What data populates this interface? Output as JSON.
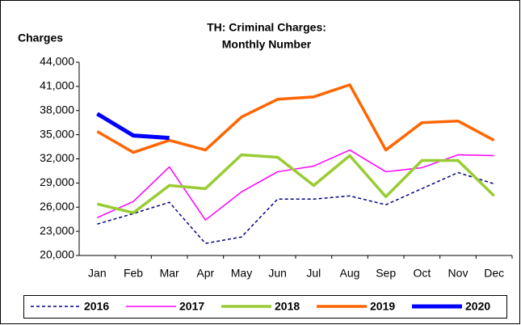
{
  "chart_data": {
    "type": "line",
    "title": [
      "TH: Criminal Charges:",
      "Monthly Number"
    ],
    "y_label": "Charges",
    "categories": [
      "Jan",
      "Feb",
      "Mar",
      "Apr",
      "May",
      "Jun",
      "Jul",
      "Aug",
      "Sep",
      "Oct",
      "Nov",
      "Dec"
    ],
    "series": [
      {
        "name": "2016",
        "color": "#000080",
        "line_style": "dashed",
        "values": [
          23900,
          25200,
          26600,
          21500,
          22300,
          27000,
          27000,
          27400,
          26300,
          28300,
          30300,
          28900
        ]
      },
      {
        "name": "2017",
        "color": "#ff00ff",
        "line_style": "solid",
        "values": [
          24700,
          26700,
          31000,
          24400,
          27900,
          30400,
          31100,
          33100,
          30400,
          30900,
          32500,
          32400
        ]
      },
      {
        "name": "2018",
        "color": "#99cc33",
        "line_style": "solid",
        "values": [
          26400,
          25300,
          28700,
          28300,
          32500,
          32200,
          28700,
          32400,
          27300,
          31800,
          31800,
          27400
        ]
      },
      {
        "name": "2019",
        "color": "#ff6600",
        "line_style": "solid",
        "values": [
          35400,
          32800,
          34300,
          33100,
          37200,
          39400,
          39700,
          41200,
          33100,
          36500,
          36700,
          34300
        ]
      },
      {
        "name": "2020",
        "color": "#0000ff",
        "line_style": "solid",
        "values": [
          37600,
          34900,
          34600,
          null,
          null,
          null,
          null,
          null,
          null,
          null,
          null,
          null
        ]
      }
    ],
    "ylim": [
      20000,
      44000
    ],
    "yticks": [
      {
        "value": 20000,
        "label": "20,000"
      },
      {
        "value": 23000,
        "label": "23,000"
      },
      {
        "value": 26000,
        "label": "26,000"
      },
      {
        "value": 29000,
        "label": "29,000"
      },
      {
        "value": 32000,
        "label": "32,000"
      },
      {
        "value": 35000,
        "label": "35,000"
      },
      {
        "value": 38000,
        "label": "38,000"
      },
      {
        "value": 41000,
        "label": "41,000"
      },
      {
        "value": 44000,
        "label": "44,000"
      }
    ],
    "grid": false,
    "legend": "bottom"
  }
}
